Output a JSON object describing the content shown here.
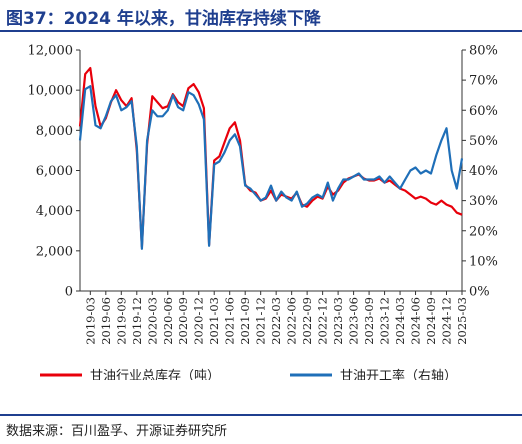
{
  "header": {
    "title": "图37：2024 年以来，甘油库存持续下降"
  },
  "footer": {
    "source": "数据来源：百川盈孚、开源证券研究所"
  },
  "chart_data": {
    "type": "line",
    "title": "",
    "xlabel": "",
    "ylabel": "",
    "x_tick_labels": [
      "2019-03",
      "2019-06",
      "2019-09",
      "2019-12",
      "2020-03",
      "2020-06",
      "2020-09",
      "2020-12",
      "2021-03",
      "2021-06",
      "2021-09",
      "2021-12",
      "2022-03",
      "2022-06",
      "2022-09",
      "2022-12",
      "2023-03",
      "2023-06",
      "2023-09",
      "2023-12",
      "2024-03",
      "2024-06",
      "2024-09",
      "2024-12",
      "2025-03"
    ],
    "y_left": {
      "ylim": [
        0,
        12000
      ],
      "tick_labels": [
        "0",
        "2,000",
        "4,000",
        "6,000",
        "8,000",
        "10,000",
        "12,000"
      ]
    },
    "y_right": {
      "ylim": [
        0,
        80
      ],
      "tick_labels": [
        "0%",
        "10%",
        "20%",
        "30%",
        "40%",
        "50%",
        "60%",
        "70%",
        "80%"
      ]
    },
    "grid": false,
    "legend_position": "bottom",
    "series": [
      {
        "name": "甘油行业总库存（吨）",
        "axis": "left",
        "color": "#e8000b",
        "x": [
          "2019-01",
          "2019-02",
          "2019-03",
          "2019-04",
          "2019-05",
          "2019-06",
          "2019-07",
          "2019-08",
          "2019-09",
          "2019-10",
          "2019-11",
          "2019-12",
          "2020-01",
          "2020-02",
          "2020-03",
          "2020-04",
          "2020-05",
          "2020-06",
          "2020-07",
          "2020-08",
          "2020-09",
          "2020-10",
          "2020-11",
          "2020-12",
          "2021-01",
          "2021-02",
          "2021-03",
          "2021-04",
          "2021-05",
          "2021-06",
          "2021-07",
          "2021-08",
          "2021-09",
          "2021-10",
          "2021-11",
          "2021-12",
          "2022-01",
          "2022-02",
          "2022-03",
          "2022-04",
          "2022-05",
          "2022-06",
          "2022-07",
          "2022-08",
          "2022-09",
          "2022-10",
          "2022-11",
          "2022-12",
          "2023-01",
          "2023-02",
          "2023-03",
          "2023-04",
          "2023-05",
          "2023-06",
          "2023-07",
          "2023-08",
          "2023-09",
          "2023-10",
          "2023-11",
          "2023-12",
          "2024-01",
          "2024-02",
          "2024-03",
          "2024-04",
          "2024-05",
          "2024-06",
          "2024-07",
          "2024-08",
          "2024-09",
          "2024-10",
          "2024-11",
          "2024-12",
          "2025-01",
          "2025-02",
          "2025-03"
        ],
        "values": [
          8200,
          10800,
          11100,
          9200,
          8200,
          8600,
          9400,
          10000,
          9500,
          9200,
          9600,
          7000,
          2200,
          7300,
          9700,
          9400,
          9100,
          9200,
          9800,
          9400,
          9200,
          10100,
          10300,
          9900,
          9100,
          2300,
          6500,
          6700,
          7400,
          8100,
          8400,
          7500,
          5300,
          5000,
          4900,
          4500,
          4600,
          5000,
          4500,
          4800,
          4700,
          4600,
          4900,
          4300,
          4200,
          4500,
          4700,
          4600,
          5200,
          4800,
          5000,
          5400,
          5600,
          5700,
          5800,
          5600,
          5500,
          5500,
          5600,
          5400,
          5500,
          5300,
          5100,
          5000,
          4800,
          4600,
          4700,
          4600,
          4400,
          4300,
          4500,
          4300,
          4200,
          3900,
          3800
        ]
      },
      {
        "name": "甘油开工率（右轴）",
        "axis": "right",
        "color": "#1f6fb8",
        "x": [
          "2019-01",
          "2019-02",
          "2019-03",
          "2019-04",
          "2019-05",
          "2019-06",
          "2019-07",
          "2019-08",
          "2019-09",
          "2019-10",
          "2019-11",
          "2019-12",
          "2020-01",
          "2020-02",
          "2020-03",
          "2020-04",
          "2020-05",
          "2020-06",
          "2020-07",
          "2020-08",
          "2020-09",
          "2020-10",
          "2020-11",
          "2020-12",
          "2021-01",
          "2021-02",
          "2021-03",
          "2021-04",
          "2021-05",
          "2021-06",
          "2021-07",
          "2021-08",
          "2021-09",
          "2021-10",
          "2021-11",
          "2021-12",
          "2022-01",
          "2022-02",
          "2022-03",
          "2022-04",
          "2022-05",
          "2022-06",
          "2022-07",
          "2022-08",
          "2022-09",
          "2022-10",
          "2022-11",
          "2022-12",
          "2023-01",
          "2023-02",
          "2023-03",
          "2023-04",
          "2023-05",
          "2023-06",
          "2023-07",
          "2023-08",
          "2023-09",
          "2023-10",
          "2023-11",
          "2023-12",
          "2024-01",
          "2024-02",
          "2024-03",
          "2024-04",
          "2024-05",
          "2024-06",
          "2024-07",
          "2024-08",
          "2024-09",
          "2024-10",
          "2024-11",
          "2024-12",
          "2025-01",
          "2025-02",
          "2025-03"
        ],
        "values": [
          50,
          67,
          68,
          55,
          54,
          58,
          63,
          65,
          60,
          61,
          63,
          48,
          14,
          50,
          60,
          58,
          58,
          60,
          65,
          61,
          60,
          66,
          65,
          62,
          57,
          15,
          42,
          43,
          46,
          50,
          52,
          48,
          35,
          34,
          32,
          30,
          31,
          35,
          30,
          33,
          31,
          30,
          33,
          28,
          29,
          31,
          32,
          31,
          36,
          30,
          34,
          37,
          37,
          38,
          39,
          37,
          37,
          37,
          38,
          36,
          38,
          36,
          34,
          37,
          40,
          41,
          39,
          40,
          39,
          45,
          50,
          54,
          40,
          34,
          44
        ]
      }
    ]
  }
}
